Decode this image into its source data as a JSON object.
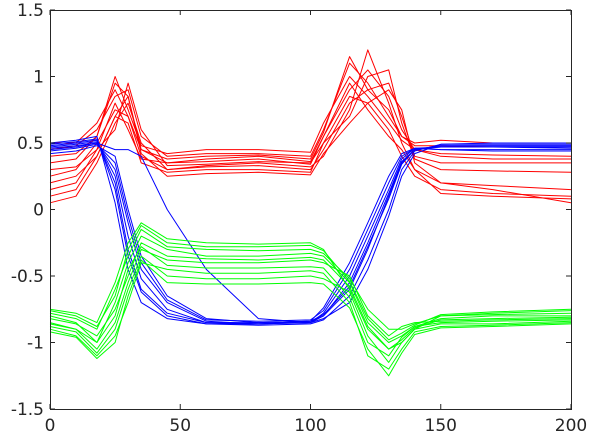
{
  "chart_data": {
    "type": "line",
    "title": "",
    "xlabel": "",
    "ylabel": "",
    "xlim": [
      0,
      200
    ],
    "ylim": [
      -1.5,
      1.5
    ],
    "x_ticks": [
      0,
      50,
      100,
      150,
      200
    ],
    "x_tick_labels": [
      "0",
      "50",
      "100",
      "150",
      "200"
    ],
    "y_ticks": [
      1.5,
      1,
      0.5,
      0,
      -0.5,
      -1,
      -1.5
    ],
    "y_tick_labels": [
      "1.5",
      "1",
      "0.5",
      "0",
      "-0.5",
      "-1",
      "-1.5"
    ],
    "grid": false,
    "legend": "none",
    "x": [
      0,
      10,
      18,
      25,
      30,
      35,
      45,
      60,
      80,
      100,
      105,
      115,
      122,
      130,
      135,
      140,
      150,
      170,
      200
    ],
    "series": [
      {
        "color": "#ff0000",
        "members": [
          [
            0.35,
            0.38,
            0.55,
            0.95,
            0.85,
            0.45,
            0.35,
            0.38,
            0.4,
            0.36,
            0.55,
            0.9,
            1.05,
            0.85,
            0.6,
            0.45,
            0.4,
            0.38,
            0.38
          ],
          [
            0.45,
            0.48,
            0.6,
            0.85,
            0.9,
            0.55,
            0.4,
            0.42,
            0.42,
            0.4,
            0.6,
            1.1,
            0.95,
            0.7,
            0.55,
            0.48,
            0.48,
            0.47,
            0.47
          ],
          [
            0.25,
            0.3,
            0.5,
            0.75,
            0.7,
            0.4,
            0.3,
            0.32,
            0.33,
            0.3,
            0.45,
            0.8,
            0.9,
            0.95,
            0.7,
            0.4,
            0.35,
            0.35,
            0.35
          ],
          [
            0.1,
            0.15,
            0.4,
            0.7,
            0.65,
            0.35,
            0.28,
            0.3,
            0.3,
            0.28,
            0.5,
            0.85,
            0.8,
            0.6,
            0.4,
            0.25,
            0.15,
            0.12,
            0.1
          ],
          [
            0.05,
            0.1,
            0.35,
            0.65,
            0.8,
            0.5,
            0.3,
            0.33,
            0.35,
            0.32,
            0.4,
            0.75,
            1.2,
            0.8,
            0.5,
            0.3,
            0.2,
            0.15,
            0.05
          ],
          [
            0.4,
            0.42,
            0.55,
            1.0,
            0.75,
            0.48,
            0.42,
            0.45,
            0.45,
            0.43,
            0.65,
            1.0,
            0.85,
            0.65,
            0.52,
            0.45,
            0.42,
            0.41,
            0.4
          ],
          [
            0.3,
            0.32,
            0.45,
            0.6,
            0.95,
            0.6,
            0.33,
            0.34,
            0.36,
            0.35,
            0.5,
            0.7,
            1.0,
            1.05,
            0.65,
            0.38,
            0.3,
            0.29,
            0.28
          ],
          [
            0.15,
            0.2,
            0.45,
            0.8,
            0.6,
            0.38,
            0.35,
            0.36,
            0.38,
            0.34,
            0.55,
            0.95,
            0.75,
            0.55,
            0.45,
            0.3,
            0.12,
            0.1,
            0.08
          ],
          [
            0.5,
            0.5,
            0.65,
            0.9,
            0.7,
            0.45,
            0.38,
            0.4,
            0.41,
            0.38,
            0.58,
            1.15,
            0.9,
            0.75,
            0.55,
            0.5,
            0.52,
            0.5,
            0.5
          ],
          [
            0.2,
            0.25,
            0.4,
            0.7,
            0.85,
            0.42,
            0.25,
            0.27,
            0.28,
            0.26,
            0.42,
            0.65,
            0.8,
            0.9,
            0.75,
            0.35,
            0.2,
            0.18,
            0.15
          ]
        ]
      },
      {
        "color": "#0000ff",
        "members": [
          [
            0.48,
            0.5,
            0.52,
            0.2,
            -0.3,
            -0.6,
            -0.78,
            -0.85,
            -0.85,
            -0.84,
            -0.8,
            -0.6,
            -0.3,
            0.1,
            0.35,
            0.45,
            0.48,
            0.48,
            0.48
          ],
          [
            0.45,
            0.47,
            0.5,
            0.3,
            -0.1,
            -0.45,
            -0.7,
            -0.84,
            -0.86,
            -0.85,
            -0.78,
            -0.5,
            -0.2,
            0.15,
            0.38,
            0.46,
            0.47,
            0.47,
            0.46
          ],
          [
            0.5,
            0.52,
            0.55,
            0.05,
            -0.45,
            -0.7,
            -0.82,
            -0.86,
            -0.86,
            -0.85,
            -0.82,
            -0.7,
            -0.45,
            -0.05,
            0.25,
            0.42,
            0.49,
            0.5,
            0.5
          ],
          [
            0.42,
            0.44,
            0.48,
            0.4,
            0.0,
            -0.35,
            -0.65,
            -0.82,
            -0.85,
            -0.84,
            -0.74,
            -0.4,
            -0.1,
            0.25,
            0.42,
            0.46,
            0.45,
            0.44,
            0.44
          ],
          [
            0.46,
            0.48,
            0.5,
            0.45,
            0.45,
            0.4,
            0.0,
            -0.45,
            -0.82,
            -0.85,
            -0.8,
            -0.55,
            -0.25,
            0.12,
            0.36,
            0.45,
            0.47,
            0.47,
            0.47
          ],
          [
            0.49,
            0.51,
            0.53,
            0.15,
            -0.35,
            -0.62,
            -0.8,
            -0.86,
            -0.87,
            -0.86,
            -0.83,
            -0.65,
            -0.38,
            0.0,
            0.3,
            0.44,
            0.49,
            0.49,
            0.49
          ],
          [
            0.44,
            0.46,
            0.49,
            0.35,
            -0.05,
            -0.4,
            -0.68,
            -0.83,
            -0.84,
            -0.83,
            -0.76,
            -0.45,
            -0.15,
            0.2,
            0.4,
            0.46,
            0.45,
            0.45,
            0.45
          ],
          [
            0.47,
            0.49,
            0.51,
            0.25,
            -0.2,
            -0.52,
            -0.75,
            -0.85,
            -0.86,
            -0.84,
            -0.79,
            -0.58,
            -0.28,
            0.08,
            0.34,
            0.45,
            0.48,
            0.48,
            0.48
          ]
        ]
      },
      {
        "color": "#00ff00",
        "members": [
          [
            -0.8,
            -0.85,
            -1.0,
            -0.7,
            -0.4,
            -0.2,
            -0.3,
            -0.35,
            -0.35,
            -0.33,
            -0.35,
            -0.55,
            -0.85,
            -1.0,
            -0.95,
            -0.88,
            -0.82,
            -0.8,
            -0.8
          ],
          [
            -0.75,
            -0.78,
            -0.85,
            -0.55,
            -0.25,
            -0.1,
            -0.22,
            -0.25,
            -0.26,
            -0.25,
            -0.3,
            -0.6,
            -0.9,
            -1.05,
            -1.0,
            -0.9,
            -0.8,
            -0.78,
            -0.76
          ],
          [
            -0.85,
            -0.9,
            -1.05,
            -0.85,
            -0.55,
            -0.3,
            -0.38,
            -0.4,
            -0.4,
            -0.38,
            -0.4,
            -0.5,
            -0.8,
            -0.95,
            -0.88,
            -0.85,
            -0.84,
            -0.83,
            -0.82
          ],
          [
            -0.9,
            -0.95,
            -1.1,
            -0.95,
            -0.7,
            -0.4,
            -0.45,
            -0.48,
            -0.48,
            -0.46,
            -0.48,
            -0.7,
            -1.1,
            -1.2,
            -1.05,
            -0.92,
            -0.88,
            -0.87,
            -0.85
          ],
          [
            -0.78,
            -0.82,
            -0.9,
            -0.6,
            -0.35,
            -0.15,
            -0.28,
            -0.3,
            -0.31,
            -0.3,
            -0.33,
            -0.52,
            -0.75,
            -0.9,
            -0.9,
            -0.86,
            -0.8,
            -0.79,
            -0.78
          ],
          [
            -0.88,
            -0.92,
            -1.08,
            -0.9,
            -0.6,
            -0.35,
            -0.5,
            -0.52,
            -0.52,
            -0.5,
            -0.52,
            -0.62,
            -0.95,
            -1.15,
            -1.0,
            -0.9,
            -0.86,
            -0.86,
            -0.84
          ],
          [
            -0.82,
            -0.86,
            -0.95,
            -0.75,
            -0.5,
            -0.25,
            -0.35,
            -0.37,
            -0.38,
            -0.36,
            -0.38,
            -0.58,
            -0.88,
            -1.05,
            -0.98,
            -0.89,
            -0.83,
            -0.82,
            -0.81
          ],
          [
            -0.76,
            -0.8,
            -0.88,
            -0.65,
            -0.3,
            -0.12,
            -0.25,
            -0.28,
            -0.28,
            -0.27,
            -0.31,
            -0.54,
            -0.82,
            -0.98,
            -0.93,
            -0.87,
            -0.79,
            -0.77,
            -0.75
          ],
          [
            -0.86,
            -0.9,
            -1.0,
            -0.8,
            -0.45,
            -0.28,
            -0.42,
            -0.44,
            -0.44,
            -0.43,
            -0.44,
            -0.66,
            -1.0,
            -1.1,
            -0.96,
            -0.88,
            -0.85,
            -0.84,
            -0.83
          ],
          [
            -0.92,
            -0.96,
            -1.12,
            -1.0,
            -0.65,
            -0.38,
            -0.55,
            -0.56,
            -0.56,
            -0.55,
            -0.56,
            -0.74,
            -1.05,
            -1.25,
            -1.08,
            -0.94,
            -0.89,
            -0.88,
            -0.86
          ]
        ]
      }
    ]
  }
}
